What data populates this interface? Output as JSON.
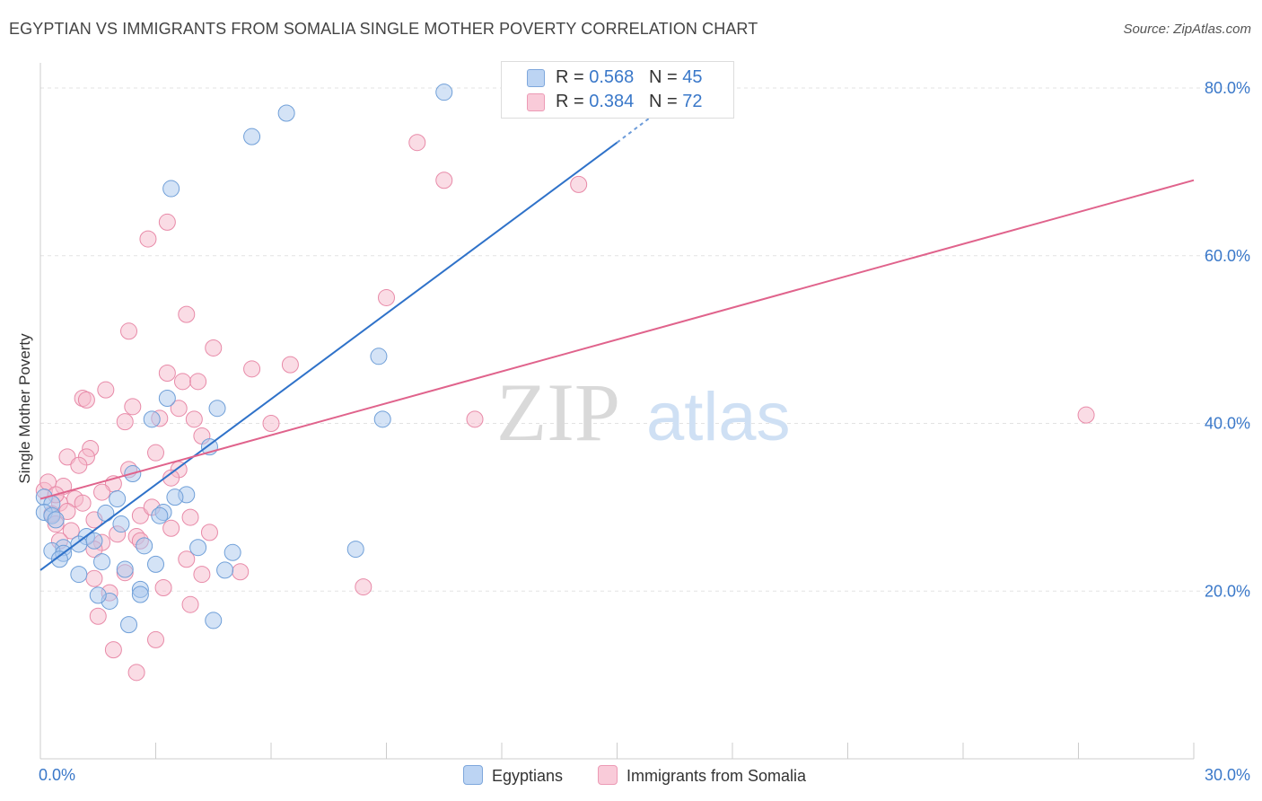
{
  "title": "EGYPTIAN VS IMMIGRANTS FROM SOMALIA SINGLE MOTHER POVERTY CORRELATION CHART",
  "source": "Source: ZipAtlas.com",
  "watermark": {
    "part1": "ZIP",
    "part2": "atlas"
  },
  "colors": {
    "blue_fill": "#aac8ee",
    "blue_stroke": "#6f9fd8",
    "blue_line": "#2f72c9",
    "pink_fill": "#f6b9cb",
    "pink_stroke": "#e88aa8",
    "pink_line": "#e0638c",
    "axis_text": "#3a78c9",
    "grid": "#e3e3e3"
  },
  "legend_top": {
    "rows": [
      {
        "r_label": "R = ",
        "r_value": "0.568",
        "n_label": "N = ",
        "n_value": "45"
      },
      {
        "r_label": "R = ",
        "r_value": "0.384",
        "n_label": "N = ",
        "n_value": "72"
      }
    ]
  },
  "legend_bottom": [
    "Egyptians",
    "Immigrants from Somalia"
  ],
  "chart_data": {
    "type": "scatter",
    "title": "EGYPTIAN VS IMMIGRANTS FROM SOMALIA SINGLE MOTHER POVERTY CORRELATION CHART",
    "xlabel": "",
    "ylabel": "Single Mother Poverty",
    "xlim": [
      0,
      30
    ],
    "ylim": [
      0,
      83
    ],
    "x_tick_labels": [
      "0.0%",
      "30.0%"
    ],
    "y_ticks": [
      20,
      40,
      60,
      80
    ],
    "y_tick_labels": [
      "20.0%",
      "40.0%",
      "60.0%",
      "80.0%"
    ],
    "grid": true,
    "series": [
      {
        "name": "Egyptians",
        "R": 0.568,
        "N": 45,
        "trend": {
          "x0": 0,
          "y0": 22.5,
          "x1": 15.0,
          "y1": 73.5,
          "dash_to_x": 16.3,
          "dash_to_y": 78.0
        },
        "points": [
          [
            10.5,
            79.5
          ],
          [
            6.4,
            77.0
          ],
          [
            5.5,
            74.2
          ],
          [
            3.4,
            68.0
          ],
          [
            8.8,
            48.0
          ],
          [
            3.3,
            43.0
          ],
          [
            4.6,
            41.8
          ],
          [
            2.9,
            40.5
          ],
          [
            8.9,
            40.5
          ],
          [
            4.4,
            37.2
          ],
          [
            2.4,
            34.0
          ],
          [
            3.8,
            31.5
          ],
          [
            3.5,
            31.2
          ],
          [
            2.0,
            31.0
          ],
          [
            0.1,
            31.2
          ],
          [
            0.3,
            30.4
          ],
          [
            0.1,
            29.4
          ],
          [
            1.7,
            29.3
          ],
          [
            3.2,
            29.4
          ],
          [
            3.1,
            29.0
          ],
          [
            2.1,
            28.0
          ],
          [
            0.3,
            29.0
          ],
          [
            0.4,
            28.5
          ],
          [
            1.2,
            26.5
          ],
          [
            1.4,
            26.0
          ],
          [
            1.0,
            25.6
          ],
          [
            0.6,
            25.2
          ],
          [
            4.1,
            25.2
          ],
          [
            2.7,
            25.4
          ],
          [
            5.0,
            24.6
          ],
          [
            0.3,
            24.8
          ],
          [
            0.6,
            24.5
          ],
          [
            1.6,
            23.5
          ],
          [
            3.0,
            23.2
          ],
          [
            2.2,
            22.6
          ],
          [
            4.8,
            22.5
          ],
          [
            0.5,
            23.8
          ],
          [
            1.0,
            22.0
          ],
          [
            8.2,
            25.0
          ],
          [
            2.6,
            20.2
          ],
          [
            2.6,
            19.6
          ],
          [
            1.8,
            18.8
          ],
          [
            1.5,
            19.5
          ],
          [
            4.5,
            16.5
          ],
          [
            2.3,
            16.0
          ]
        ]
      },
      {
        "name": "Immigrants from Somalia",
        "R": 0.384,
        "N": 72,
        "trend": {
          "x0": 0,
          "y0": 31.0,
          "x1": 30.0,
          "y1": 69.0
        },
        "points": [
          [
            9.8,
            73.5
          ],
          [
            10.5,
            69.0
          ],
          [
            14.0,
            68.5
          ],
          [
            3.3,
            64.0
          ],
          [
            2.8,
            62.0
          ],
          [
            9.0,
            55.0
          ],
          [
            3.8,
            53.0
          ],
          [
            2.3,
            51.0
          ],
          [
            4.5,
            49.0
          ],
          [
            6.5,
            47.0
          ],
          [
            5.5,
            46.5
          ],
          [
            3.3,
            46.0
          ],
          [
            3.7,
            45.0
          ],
          [
            4.1,
            45.0
          ],
          [
            1.7,
            44.0
          ],
          [
            1.1,
            43.0
          ],
          [
            2.4,
            42.0
          ],
          [
            1.2,
            42.8
          ],
          [
            3.6,
            41.8
          ],
          [
            4.0,
            40.5
          ],
          [
            3.1,
            40.6
          ],
          [
            2.2,
            40.2
          ],
          [
            6.0,
            40.0
          ],
          [
            11.3,
            40.5
          ],
          [
            27.2,
            41.0
          ],
          [
            4.2,
            38.5
          ],
          [
            1.3,
            37.0
          ],
          [
            1.2,
            36.0
          ],
          [
            0.7,
            36.0
          ],
          [
            3.0,
            36.5
          ],
          [
            1.0,
            35.0
          ],
          [
            2.3,
            34.5
          ],
          [
            3.6,
            34.5
          ],
          [
            3.4,
            33.5
          ],
          [
            0.6,
            32.5
          ],
          [
            1.9,
            32.8
          ],
          [
            0.1,
            32.0
          ],
          [
            1.6,
            31.8
          ],
          [
            0.9,
            31.0
          ],
          [
            0.5,
            30.5
          ],
          [
            0.7,
            29.5
          ],
          [
            2.6,
            29.0
          ],
          [
            3.9,
            28.8
          ],
          [
            1.4,
            28.5
          ],
          [
            0.3,
            29.2
          ],
          [
            0.4,
            28.0
          ],
          [
            3.4,
            27.5
          ],
          [
            4.4,
            27.0
          ],
          [
            0.8,
            27.2
          ],
          [
            2.0,
            26.8
          ],
          [
            2.5,
            26.5
          ],
          [
            2.6,
            26.0
          ],
          [
            1.6,
            25.8
          ],
          [
            0.5,
            26.0
          ],
          [
            1.4,
            25.0
          ],
          [
            3.8,
            23.8
          ],
          [
            4.2,
            22.0
          ],
          [
            5.2,
            22.3
          ],
          [
            2.2,
            22.2
          ],
          [
            1.4,
            21.5
          ],
          [
            8.4,
            20.5
          ],
          [
            3.2,
            20.4
          ],
          [
            1.8,
            19.8
          ],
          [
            3.9,
            18.4
          ],
          [
            1.5,
            17.0
          ],
          [
            3.0,
            14.2
          ],
          [
            1.9,
            13.0
          ],
          [
            2.5,
            10.3
          ],
          [
            0.2,
            33.0
          ],
          [
            1.1,
            30.5
          ],
          [
            0.4,
            31.5
          ],
          [
            2.9,
            30.0
          ]
        ]
      }
    ]
  }
}
